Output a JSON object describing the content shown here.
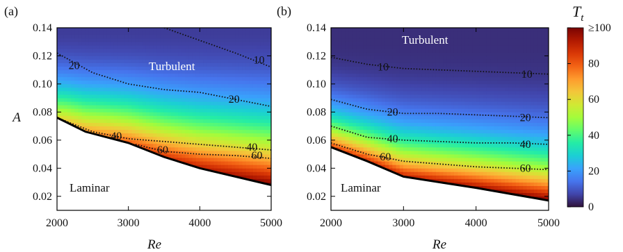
{
  "chart_data": [
    {
      "panel_label": "(a)",
      "type": "heatmap",
      "xlabel": "Re",
      "ylabel": "A",
      "xlim": [
        2000,
        5000
      ],
      "ylim": [
        0.01,
        0.14
      ],
      "xticks": [
        2000,
        3000,
        4000,
        5000
      ],
      "yticks": [
        0.02,
        0.04,
        0.06,
        0.08,
        0.1,
        0.12,
        0.14
      ],
      "region_labels": {
        "upper": "Turbulent",
        "lower": "Laminar"
      },
      "boundary": {
        "x": [
          2000,
          2400,
          3000,
          3500,
          4000,
          5000
        ],
        "y": [
          0.076,
          0.066,
          0.058,
          0.048,
          0.04,
          0.028
        ]
      },
      "contours": [
        {
          "level": "10",
          "x": [
            3500,
            4000,
            4500,
            5000
          ],
          "y": [
            0.14,
            0.131,
            0.122,
            0.112
          ]
        },
        {
          "level": "20",
          "x": [
            2000,
            2500,
            3000,
            3500,
            4000,
            4500,
            5000
          ],
          "y": [
            0.122,
            0.108,
            0.1,
            0.096,
            0.094,
            0.089,
            0.084
          ]
        },
        {
          "level": "40",
          "x": [
            2000,
            2500,
            3000,
            3500,
            4000,
            4500,
            5000
          ],
          "y": [
            0.076,
            0.066,
            0.061,
            0.059,
            0.057,
            0.055,
            0.053
          ]
        },
        {
          "level": "60",
          "x": [
            3100,
            3500,
            4000,
            4500,
            5000
          ],
          "y": [
            0.057,
            0.052,
            0.05,
            0.049,
            0.047
          ]
        }
      ],
      "contour_labels": [
        {
          "text": "10",
          "x": 4830,
          "y": 0.117
        },
        {
          "text": "20",
          "x": 2240,
          "y": 0.113
        },
        {
          "text": "20",
          "x": 4480,
          "y": 0.089
        },
        {
          "text": "40",
          "x": 2830,
          "y": 0.063
        },
        {
          "text": "40",
          "x": 4730,
          "y": 0.055
        },
        {
          "text": "60",
          "x": 3480,
          "y": 0.053
        },
        {
          "text": "60",
          "x": 4800,
          "y": 0.049
        }
      ]
    },
    {
      "panel_label": "(b)",
      "type": "heatmap",
      "xlabel": "Re",
      "ylabel": "",
      "xlim": [
        2000,
        5000
      ],
      "ylim": [
        0.01,
        0.14
      ],
      "xticks": [
        2000,
        3000,
        4000,
        5000
      ],
      "yticks": [
        0.02,
        0.04,
        0.06,
        0.08,
        0.1,
        0.12,
        0.14
      ],
      "region_labels": {
        "upper": "Turbulent",
        "lower": "Laminar"
      },
      "boundary": {
        "x": [
          2000,
          2500,
          3000,
          4000,
          5000
        ],
        "y": [
          0.055,
          0.045,
          0.034,
          0.026,
          0.017
        ]
      },
      "contours": [
        {
          "level": "10",
          "x": [
            2000,
            2500,
            3000,
            3500,
            4000,
            4500,
            5000
          ],
          "y": [
            0.119,
            0.114,
            0.111,
            0.11,
            0.109,
            0.108,
            0.107
          ]
        },
        {
          "level": "20",
          "x": [
            2000,
            2500,
            3000,
            3500,
            4000,
            4500,
            5000
          ],
          "y": [
            0.089,
            0.082,
            0.079,
            0.079,
            0.078,
            0.077,
            0.076
          ]
        },
        {
          "level": "40",
          "x": [
            2000,
            2500,
            3000,
            3500,
            4000,
            4500,
            5000
          ],
          "y": [
            0.07,
            0.062,
            0.06,
            0.059,
            0.058,
            0.058,
            0.057
          ]
        },
        {
          "level": "60",
          "x": [
            2000,
            2500,
            3000,
            3500,
            4000,
            4500,
            5000
          ],
          "y": [
            0.058,
            0.05,
            0.045,
            0.043,
            0.041,
            0.04,
            0.039
          ]
        }
      ],
      "contour_labels": [
        {
          "text": "10",
          "x": 2720,
          "y": 0.112
        },
        {
          "text": "10",
          "x": 4700,
          "y": 0.107
        },
        {
          "text": "20",
          "x": 2850,
          "y": 0.08
        },
        {
          "text": "20",
          "x": 4680,
          "y": 0.076
        },
        {
          "text": "40",
          "x": 2850,
          "y": 0.061
        },
        {
          "text": "40",
          "x": 4680,
          "y": 0.057
        },
        {
          "text": "60",
          "x": 2750,
          "y": 0.048
        },
        {
          "text": "60",
          "x": 4680,
          "y": 0.04
        }
      ]
    }
  ],
  "colorbar": {
    "label": "T",
    "label_subscript": "t",
    "ticks": [
      {
        "value": 0,
        "text": "0"
      },
      {
        "value": 20,
        "text": "20"
      },
      {
        "value": 40,
        "text": "40"
      },
      {
        "value": 60,
        "text": "60"
      },
      {
        "value": 80,
        "text": "80"
      },
      {
        "value": 100,
        "text": "≥100"
      }
    ],
    "range": [
      0,
      100
    ],
    "colormap": [
      "#30123b",
      "#4145ab",
      "#4675ed",
      "#39a2fc",
      "#1bcfd4",
      "#24eca6",
      "#61fc6c",
      "#a4fc3b",
      "#d1e834",
      "#f3c63a",
      "#fe9b2d",
      "#f36315",
      "#d93806",
      "#b11901",
      "#7a0402"
    ]
  },
  "fields": {
    "a": {
      "tMin": 6,
      "tLeft": 58,
      "tRight": 100,
      "pw": 0.55,
      "pt": 2.3,
      "aMid": 0.15
    },
    "b": {
      "tMin": 4,
      "tLeft": 85,
      "tRight": 100,
      "pw": 0.85,
      "pt": 3.5,
      "aMid": 0.0
    }
  }
}
